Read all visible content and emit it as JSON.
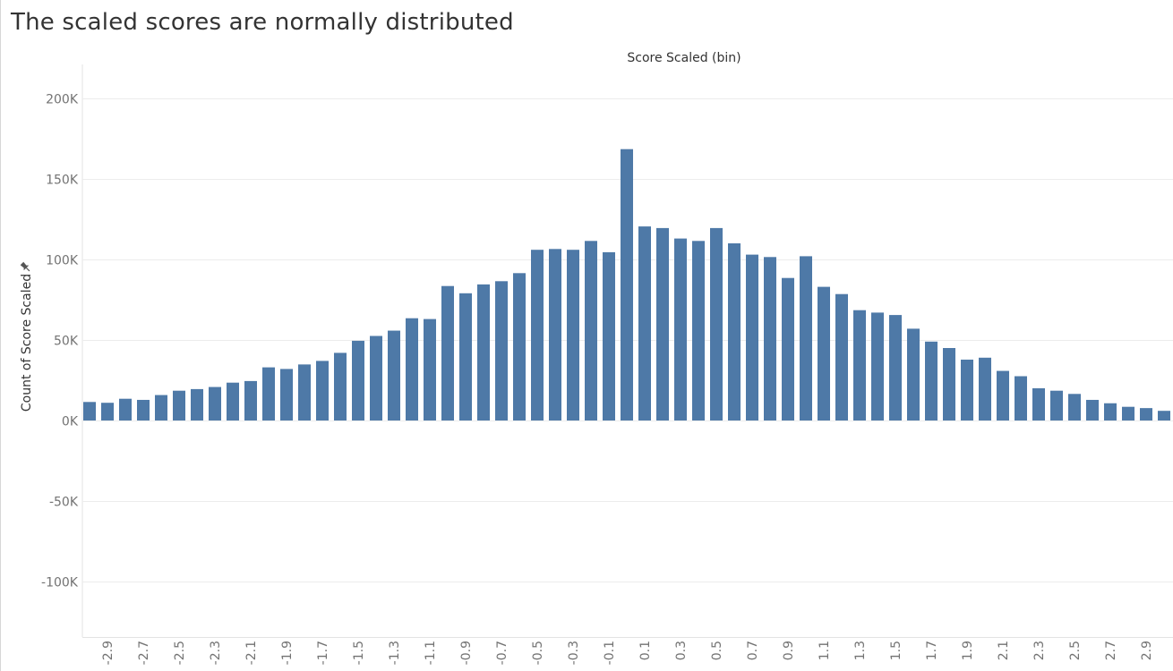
{
  "page": {
    "title": "The scaled scores are normally distributed",
    "pin_icon": "pin-icon"
  },
  "chart_data": {
    "type": "bar",
    "title": "Score Scaled (bin)",
    "xlabel": "Score Scaled (bin)",
    "ylabel": "Count of Score Scaled",
    "ylim": [
      -135000,
      225000
    ],
    "yticks": [
      200000,
      150000,
      100000,
      50000,
      0,
      -50000,
      -100000
    ],
    "ytick_labels": [
      "200K",
      "150K",
      "100K",
      "50K",
      "0K",
      "-50K",
      "-100K"
    ],
    "grid": true,
    "bar_color": "#4e79a7",
    "categories": [
      "-3.0",
      "-2.9",
      "-2.8",
      "-2.7",
      "-2.6",
      "-2.5",
      "-2.4",
      "-2.3",
      "-2.2",
      "-2.1",
      "-2.0",
      "-1.9",
      "-1.8",
      "-1.7",
      "-1.6",
      "-1.5",
      "-1.4",
      "-1.3",
      "-1.2",
      "-1.1",
      "-1.0",
      "-0.9",
      "-0.8",
      "-0.7",
      "-0.6",
      "-0.5",
      "-0.4",
      "-0.3",
      "-0.2",
      "-0.1",
      "0.0",
      "0.1",
      "0.2",
      "0.3",
      "0.4",
      "0.5",
      "0.6",
      "0.7",
      "0.8",
      "0.9",
      "1.0",
      "1.1",
      "1.2",
      "1.3",
      "1.4",
      "1.5",
      "1.6",
      "1.7",
      "1.8",
      "1.9",
      "2.0",
      "2.1",
      "2.2",
      "2.3",
      "2.4",
      "2.5",
      "2.6",
      "2.7",
      "2.8",
      "2.9",
      "3.0"
    ],
    "tick_labels": [
      "",
      "-2.9",
      "",
      "-2.7",
      "",
      "-2.5",
      "",
      "-2.3",
      "",
      "-2.1",
      "",
      "-1.9",
      "",
      "-1.7",
      "",
      "-1.5",
      "",
      "-1.3",
      "",
      "-1.1",
      "",
      "-0.9",
      "",
      "-0.7",
      "",
      "-0.5",
      "",
      "-0.3",
      "",
      "-0.1",
      "",
      "0.1",
      "",
      "0.3",
      "",
      "0.5",
      "",
      "0.7",
      "",
      "0.9",
      "",
      "1.1",
      "",
      "1.3",
      "",
      "1.5",
      "",
      "1.7",
      "",
      "1.9",
      "",
      "2.1",
      "",
      "2.3",
      "",
      "2.5",
      "",
      "2.7",
      "",
      "2.9",
      ""
    ],
    "values": [
      11500,
      11000,
      13500,
      12800,
      15800,
      18500,
      19500,
      20800,
      23500,
      24500,
      33000,
      32000,
      34800,
      37000,
      42000,
      49500,
      52500,
      55800,
      63500,
      63000,
      83500,
      79000,
      84500,
      86500,
      91500,
      106000,
      106500,
      106000,
      111500,
      104500,
      168500,
      120500,
      119500,
      113000,
      111500,
      119500,
      110000,
      103000,
      101500,
      88500,
      102000,
      83000,
      78500,
      68500,
      67000,
      65500,
      57000,
      49000,
      45000,
      37800,
      39000,
      30800,
      27500,
      20000,
      18500,
      16500,
      12800,
      10700,
      8500,
      7700,
      6000
    ]
  }
}
